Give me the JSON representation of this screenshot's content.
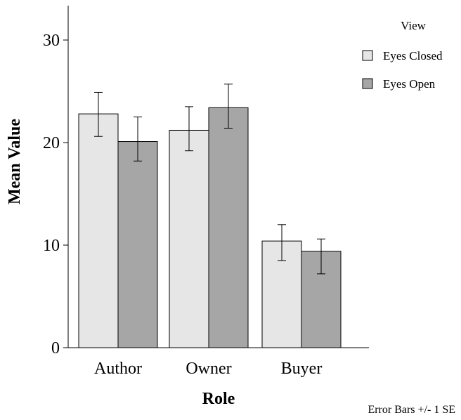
{
  "chart_data": {
    "type": "bar",
    "title": "",
    "xlabel": "Role",
    "ylabel": "Mean Value",
    "ylim": [
      0,
      30
    ],
    "yticks": [
      0,
      10,
      20,
      30
    ],
    "categories": [
      "Author",
      "Owner",
      "Buyer"
    ],
    "series": [
      {
        "name": "Eyes Closed",
        "color": "#e6e6e6",
        "values": [
          22.8,
          21.2,
          10.4
        ],
        "error_low": [
          20.6,
          19.2,
          8.5
        ],
        "error_high": [
          24.9,
          23.5,
          12.0
        ]
      },
      {
        "name": "Eyes Open",
        "color": "#a6a6a6",
        "values": [
          20.1,
          23.4,
          9.4
        ],
        "error_low": [
          18.2,
          21.4,
          7.2
        ],
        "error_high": [
          22.5,
          25.7,
          10.6
        ]
      }
    ],
    "legend_title": "View",
    "legend_position": "top-right",
    "grid": false,
    "footnote": "Error Bars +/-  1 SE"
  }
}
